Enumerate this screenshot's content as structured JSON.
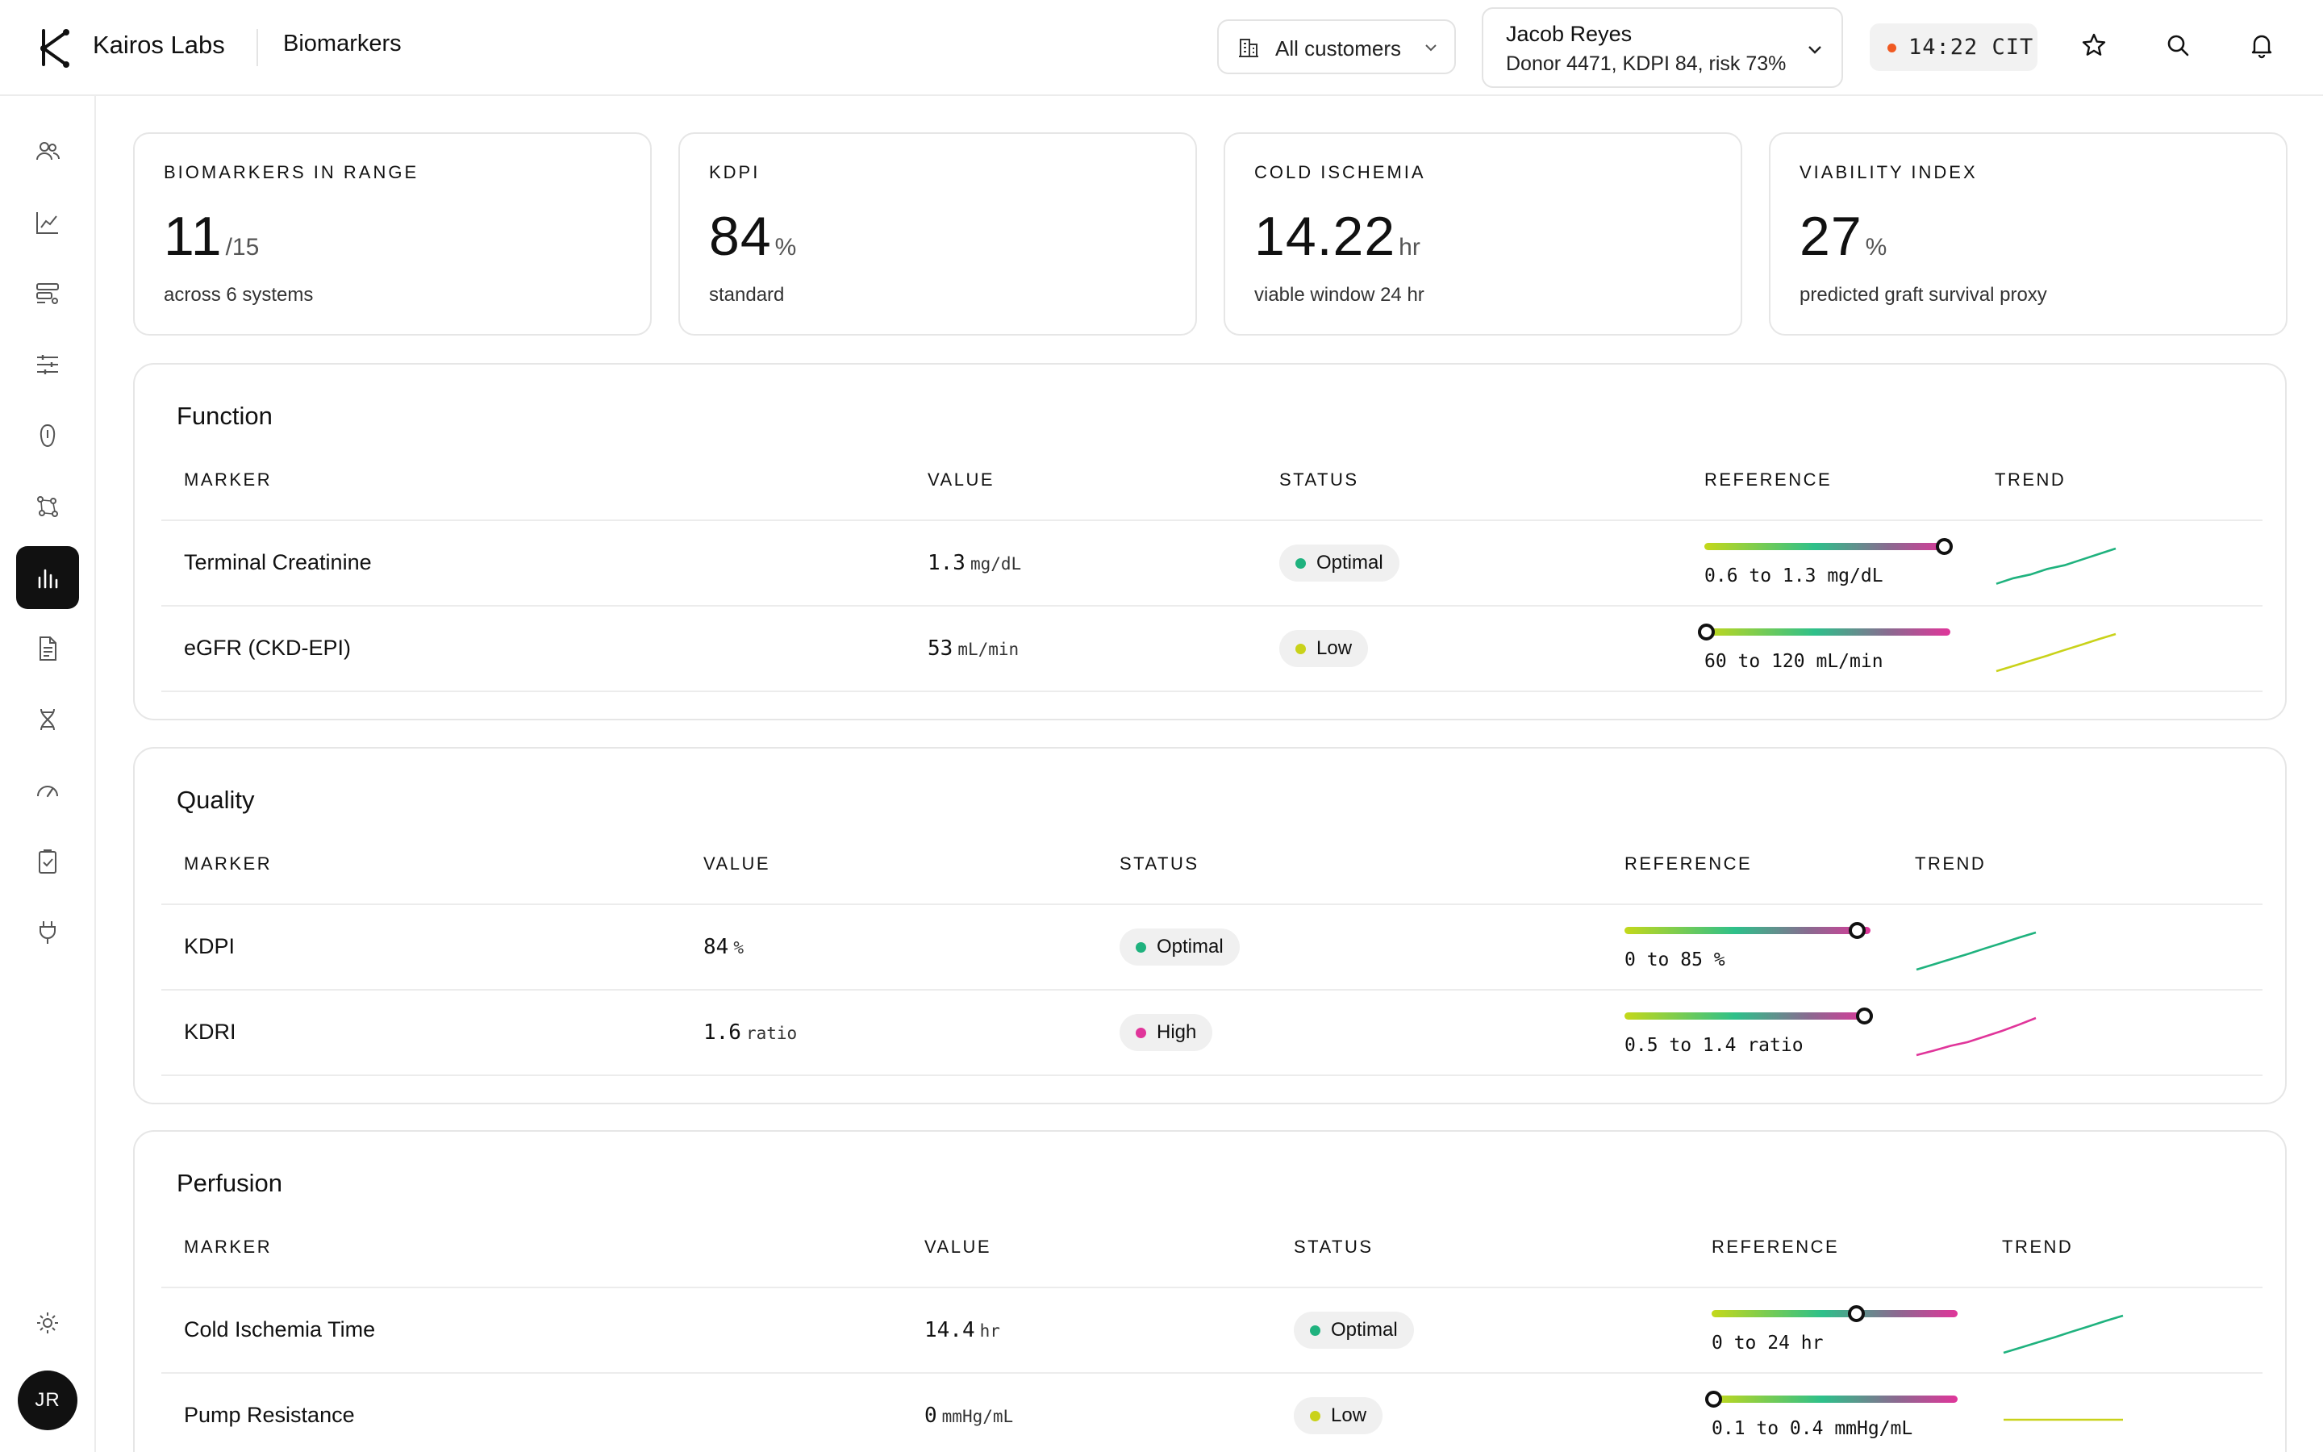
{
  "header": {
    "brand": "Kairos Labs",
    "page": "Biomarkers",
    "customer_filter": "All customers",
    "patient": {
      "name": "Jacob Reyes",
      "info": "Donor 4471, KDPI 84, risk 73%"
    },
    "clock": {
      "time": "14:22 CIT",
      "status_color": "#f05a22"
    },
    "icons": [
      "star-icon",
      "search-icon",
      "bell-icon"
    ]
  },
  "sidebar": {
    "items": [
      {
        "icon": "users-icon",
        "active": false
      },
      {
        "icon": "line-chart-icon",
        "active": false
      },
      {
        "icon": "filter-list-icon",
        "active": false
      },
      {
        "icon": "sliders-icon",
        "active": false
      },
      {
        "icon": "kidney-icon",
        "active": false
      },
      {
        "icon": "network-icon",
        "active": false
      },
      {
        "icon": "bar-chart-icon",
        "active": true
      },
      {
        "icon": "document-icon",
        "active": false
      },
      {
        "icon": "dna-icon",
        "active": false
      },
      {
        "icon": "gauge-icon",
        "active": false
      },
      {
        "icon": "clipboard-check-icon",
        "active": false
      },
      {
        "icon": "plug-icon",
        "active": false
      }
    ],
    "settings_icon": "sun-icon",
    "avatar_initials": "JR"
  },
  "stats": [
    {
      "title": "BIOMARKERS IN RANGE",
      "value": "11",
      "unit": "/15",
      "sub": "across 6 systems"
    },
    {
      "title": "KDPI",
      "value": "84",
      "unit": "%",
      "sub": "standard"
    },
    {
      "title": "COLD ISCHEMIA",
      "value": "14.22",
      "unit": "hr",
      "sub": "viable window 24 hr"
    },
    {
      "title": "VIABILITY INDEX",
      "value": "27",
      "unit": "%",
      "sub": "predicted graft survival proxy"
    }
  ],
  "colors": {
    "optimal": "#1fb27e",
    "low": "#c9d21a",
    "high": "#e0359a"
  },
  "columns": {
    "marker": "MARKER",
    "value": "VALUE",
    "status": "STATUS",
    "reference": "REFERENCE",
    "trend": "TREND"
  },
  "sections": [
    {
      "title": "Function",
      "rows": [
        {
          "marker": "Terminal Creatinine",
          "value": "1.3",
          "unit": "mg/dL",
          "status": "Optimal",
          "status_key": "optimal",
          "reference": "0.6 to 1.3 mg/dL",
          "ref_position": 1.0,
          "trend": [
            0.05,
            0.2,
            0.3,
            0.45,
            0.55,
            0.7,
            0.85,
            1.0
          ]
        },
        {
          "marker": "eGFR (CKD-EPI)",
          "value": "53",
          "unit": "mL/min",
          "status": "Low",
          "status_key": "low",
          "reference": "60 to 120 mL/min",
          "ref_position": 0.0,
          "trend": [
            0.0,
            0.14,
            0.28,
            0.42,
            0.57,
            0.71,
            0.86,
            1.0
          ]
        }
      ]
    },
    {
      "title": "Quality",
      "rows": [
        {
          "marker": "KDPI",
          "value": "84",
          "unit": "%",
          "status": "Optimal",
          "status_key": "optimal",
          "reference": "0 to 85 %",
          "ref_position": 0.97,
          "trend": [
            0.0,
            0.14,
            0.28,
            0.42,
            0.57,
            0.71,
            0.86,
            1.0
          ]
        },
        {
          "marker": "KDRI",
          "value": "1.6",
          "unit": "ratio",
          "status": "High",
          "status_key": "high",
          "reference": "0.5 to 1.4 ratio",
          "ref_position": 1.0,
          "trend": [
            0.0,
            0.12,
            0.25,
            0.35,
            0.5,
            0.65,
            0.82,
            1.0
          ]
        }
      ]
    },
    {
      "title": "Perfusion",
      "rows": [
        {
          "marker": "Cold Ischemia Time",
          "value": "14.4",
          "unit": "hr",
          "status": "Optimal",
          "status_key": "optimal",
          "reference": "0 to 24 hr",
          "ref_position": 0.6,
          "trend": [
            0.0,
            0.14,
            0.28,
            0.42,
            0.57,
            0.71,
            0.86,
            1.0
          ]
        },
        {
          "marker": "Pump Resistance",
          "value": "0",
          "unit": "mmHg/mL",
          "status": "Low",
          "status_key": "low",
          "reference": "0.1 to 0.4 mmHg/mL",
          "ref_position": 0.0,
          "trend": [
            0.5,
            0.5,
            0.5,
            0.5,
            0.5,
            0.5,
            0.5,
            0.5
          ]
        }
      ]
    }
  ]
}
